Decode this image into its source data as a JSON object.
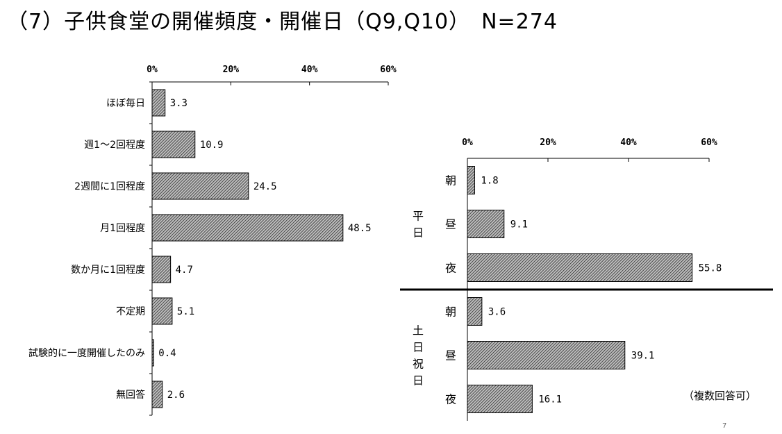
{
  "title": "（7）子供食堂の開催頻度・開催日（Q9,Q10）　N=274",
  "note": "（複数回答可）",
  "page_number": "7",
  "colors": {
    "bar_fill": "#9a9a9a",
    "bar_hatch": "#222222",
    "axis": "#000000"
  },
  "chart_data": [
    {
      "type": "bar",
      "orientation": "horizontal",
      "unit": "%",
      "xlim": [
        0,
        60
      ],
      "ticks": [
        "0%",
        "20%",
        "40%",
        "60%"
      ],
      "categories": [
        "ほぼ毎日",
        "週1～2回程度",
        "2週間に1回程度",
        "月1回程度",
        "数か月に1回程度",
        "不定期",
        "試験的に一度開催したのみ",
        "無回答"
      ],
      "values": [
        3.3,
        10.9,
        24.5,
        48.5,
        4.7,
        5.1,
        0.4,
        2.6
      ]
    },
    {
      "type": "bar",
      "orientation": "horizontal",
      "unit": "%",
      "xlim": [
        0,
        60
      ],
      "ticks": [
        "0%",
        "20%",
        "40%",
        "60%"
      ],
      "groups": [
        {
          "name": "平日",
          "categories": [
            "朝",
            "昼",
            "夜"
          ],
          "values": [
            1.8,
            9.1,
            55.8
          ]
        },
        {
          "name": "土日祝日",
          "categories": [
            "朝",
            "昼",
            "夜"
          ],
          "values": [
            3.6,
            39.1,
            16.1
          ]
        }
      ]
    }
  ]
}
